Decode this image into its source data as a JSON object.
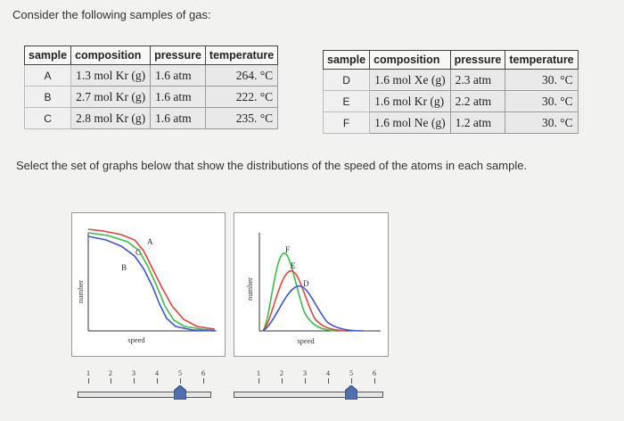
{
  "prompt": "Consider the following samples of gas:",
  "instruction": "Select the set of graphs below that show the distributions of the speed of the atoms in each sample.",
  "headers": [
    "sample",
    "composition",
    "pressure",
    "temperature"
  ],
  "table_left": [
    {
      "sample": "A",
      "composition": "1.3 mol Kr (g)",
      "pressure": "1.6 atm",
      "temperature": "264. °C"
    },
    {
      "sample": "B",
      "composition": "2.7 mol Kr (g)",
      "pressure": "1.6 atm",
      "temperature": "222. °C"
    },
    {
      "sample": "C",
      "composition": "2.8 mol Kr (g)",
      "pressure": "1.6 atm",
      "temperature": "235. °C"
    }
  ],
  "table_right": [
    {
      "sample": "D",
      "composition": "1.6 mol Xe (g)",
      "pressure": "2.3 atm",
      "temperature": "30. °C"
    },
    {
      "sample": "E",
      "composition": "1.6 mol Kr (g)",
      "pressure": "2.2 atm",
      "temperature": "30. °C"
    },
    {
      "sample": "F",
      "composition": "1.6 mol Ne (g)",
      "pressure": "1.2 atm",
      "temperature": "30. °C"
    }
  ],
  "chart_data": [
    {
      "type": "line",
      "xlabel": "speed",
      "ylabel": "number",
      "series": [
        {
          "name": "A",
          "color": "#e0453c"
        },
        {
          "name": "B",
          "color": "#3a56d6"
        },
        {
          "name": "C",
          "color": "#3bbd4a"
        }
      ]
    },
    {
      "type": "line",
      "xlabel": "speed",
      "ylabel": "number",
      "series": [
        {
          "name": "F",
          "color": "#3bbd4a"
        },
        {
          "name": "E",
          "color": "#e0453c"
        },
        {
          "name": "D",
          "color": "#3a56d6"
        }
      ]
    }
  ],
  "slider_ticks": [
    "1",
    "2",
    "3",
    "4",
    "5",
    "6"
  ],
  "sliders": [
    {
      "selected": 5
    },
    {
      "selected": 5
    }
  ],
  "colors": {
    "handle": "#4f6fae"
  }
}
